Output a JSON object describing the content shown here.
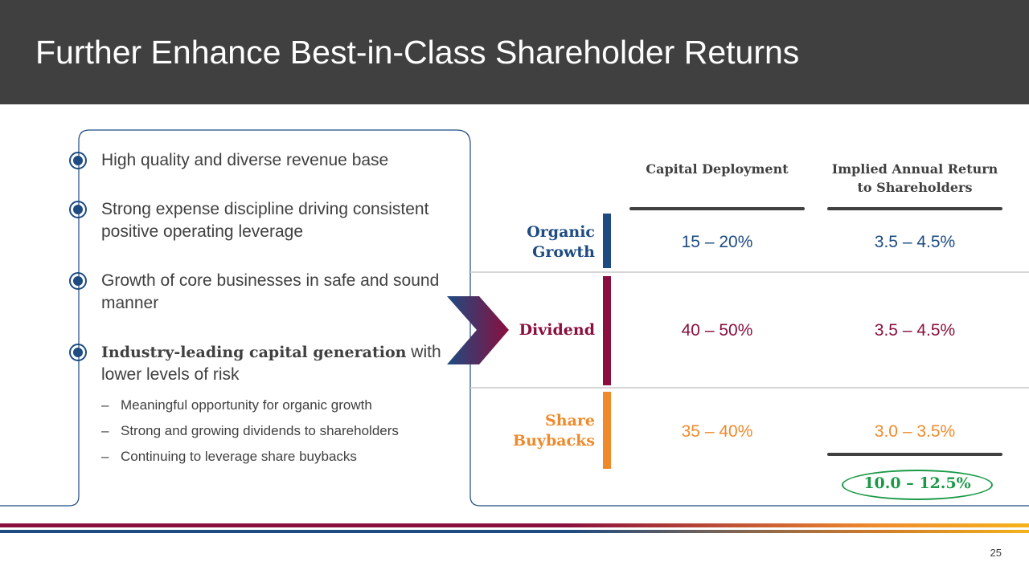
{
  "header": {
    "title": "Further Enhance Best-in-Class Shareholder Returns"
  },
  "bullets": [
    {
      "text": "High quality and diverse revenue base"
    },
    {
      "text": "Strong expense discipline driving consistent positive operating leverage"
    },
    {
      "text": "Growth of core businesses in safe and sound manner"
    },
    {
      "bold": "Industry-leading capital generation",
      "text": " with lower levels of risk"
    }
  ],
  "sub_bullets": [
    "Meaningful opportunity for organic growth",
    "Strong and growing dividends to shareholders",
    "Continuing to leverage share buybacks"
  ],
  "dash": "–",
  "table": {
    "col_capital": "Capital Deployment",
    "col_return": "Implied Annual Return to Shareholders",
    "rows": [
      {
        "label": "Organic Growth",
        "capital": "15 – 20%",
        "return": "3.5 – 4.5%",
        "color": "#1d4b82"
      },
      {
        "label": "Dividend",
        "capital": "40 – 50%",
        "return": "3.5 – 4.5%",
        "color": "#8a0f3e"
      },
      {
        "label": "Share Buybacks",
        "capital": "35 – 40%",
        "return": "3.0 – 3.5%",
        "color": "#ef8a2c"
      }
    ],
    "total": "10.0 – 12.5%",
    "total_color": "#1a9a48"
  },
  "footer": {
    "page_number": "25"
  }
}
